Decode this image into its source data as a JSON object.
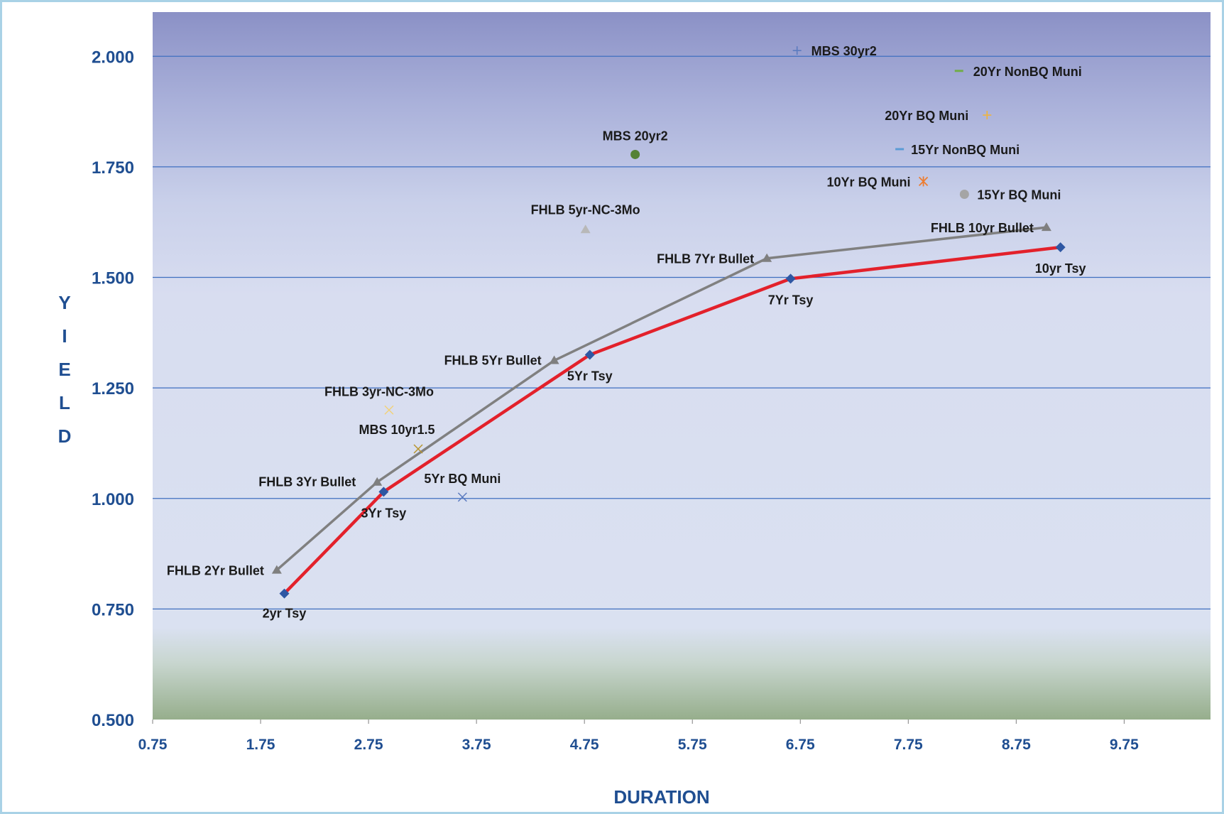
{
  "chart_data": {
    "type": "scatter",
    "xlabel": "DURATION",
    "ylabel": "YIELD",
    "xlim": [
      0.75,
      10.55
    ],
    "ylim": [
      0.5,
      2.1
    ],
    "x_ticks": [
      "0.75",
      "1.75",
      "2.75",
      "3.75",
      "4.75",
      "5.75",
      "6.75",
      "7.75",
      "8.75",
      "9.75"
    ],
    "y_ticks": [
      "0.500",
      "0.750",
      "1.000",
      "1.250",
      "1.500",
      "1.750",
      "2.000"
    ],
    "grid": "horizontal",
    "series": [
      {
        "type": "line",
        "color": "#e3212b",
        "marker": "diamond",
        "marker_color": "#2e57a3",
        "points": [
          {
            "label": "2yr Tsy",
            "x": 1.97,
            "y": 0.785
          },
          {
            "label": "3Yr Tsy",
            "x": 2.89,
            "y": 1.015
          },
          {
            "label": "5Yr Tsy",
            "x": 4.8,
            "y": 1.325
          },
          {
            "label": "7Yr Tsy",
            "x": 6.66,
            "y": 1.497
          },
          {
            "label": "10yr Tsy",
            "x": 9.16,
            "y": 1.568
          }
        ]
      },
      {
        "type": "line",
        "color": "#808080",
        "marker": "triangle",
        "marker_color": "#7f7f7f",
        "points": [
          {
            "label": "FHLB 2Yr Bullet",
            "x": 1.9,
            "y": 0.838
          },
          {
            "label": "FHLB 3Yr Bullet",
            "x": 2.83,
            "y": 1.037
          },
          {
            "label": "FHLB 5Yr Bullet",
            "x": 4.47,
            "y": 1.312
          },
          {
            "label": "FHLB 7Yr Bullet",
            "x": 6.44,
            "y": 1.543
          },
          {
            "label": "FHLB 10yr Bullet",
            "x": 9.03,
            "y": 1.613
          }
        ]
      }
    ],
    "points": [
      {
        "label": "MBS 30yr2",
        "x": 6.72,
        "y": 2.013,
        "marker": "plus",
        "color": "#5b7bbf"
      },
      {
        "label": "20Yr NonBQ Muni",
        "x": 8.22,
        "y": 1.967,
        "marker": "dash",
        "color": "#70ad47"
      },
      {
        "label": "20Yr BQ Muni",
        "x": 8.48,
        "y": 1.867,
        "marker": "plus",
        "color": "#f0b43c"
      },
      {
        "label": "15Yr NonBQ Muni",
        "x": 7.67,
        "y": 1.79,
        "marker": "dash",
        "color": "#5b9bd5"
      },
      {
        "label": "MBS 20yr2",
        "x": 5.22,
        "y": 1.778,
        "marker": "circle",
        "color": "#548235"
      },
      {
        "label": "10Yr BQ Muni",
        "x": 7.89,
        "y": 1.717,
        "marker": "star",
        "color": "#ed7d31"
      },
      {
        "label": "15Yr BQ Muni",
        "x": 8.27,
        "y": 1.688,
        "marker": "circle",
        "color": "#a5a5a5"
      },
      {
        "label": "FHLB 5yr-NC-3Mo",
        "x": 4.76,
        "y": 1.608,
        "marker": "triangle",
        "color": "#b8b8b8"
      },
      {
        "label": "FHLB 3yr-NC-3Mo",
        "x": 2.94,
        "y": 1.2,
        "marker": "x",
        "color": "#f2d27a"
      },
      {
        "label": "MBS 10yr1.5",
        "x": 3.21,
        "y": 1.112,
        "marker": "x",
        "color": "#b8952f"
      },
      {
        "label": "5Yr BQ Muni",
        "x": 3.62,
        "y": 1.003,
        "marker": "x",
        "color": "#5b7bbf"
      }
    ]
  }
}
